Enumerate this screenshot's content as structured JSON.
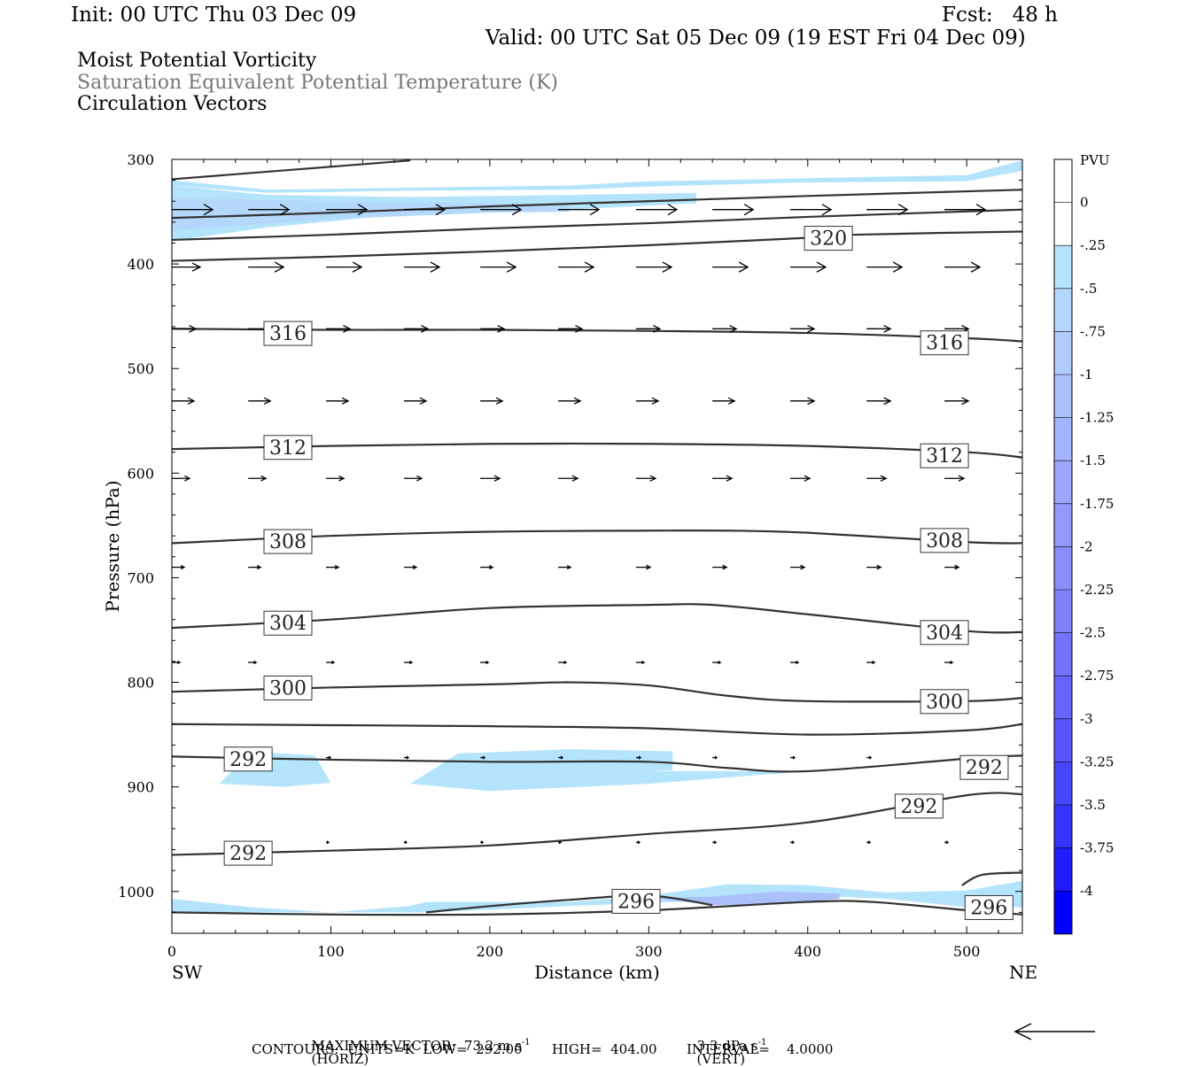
{
  "header": {
    "init": "Init: 00 UTC Thu 03 Dec 09",
    "fcst": "Fcst:   48 h",
    "valid": "Valid: 00 UTC Sat 05 Dec 09 (19 EST Fri 04 Dec 09)"
  },
  "fields": [
    "Moist Potential Vorticity",
    "Saturation Equivalent Potential Temperature (K)",
    "Circulation Vectors"
  ],
  "footer": {
    "max_vector": "MAXIMUM VECTOR:  73.2 m s",
    "max_vector_unit_tail": "(HORIZ)",
    "vert": "3.3 dPa s",
    "vert_tail": "(VERT)",
    "exp": "-1",
    "contours": "CONTOURS:  UNITS=K  LOW=  292.00       HIGH=  404.00       INTERVAL=    4.0000"
  },
  "colors": {
    "pv_shade_light": "#b4e4fb",
    "contour": "#333333"
  },
  "chart_data": {
    "type": "cross-section",
    "xlabel": "Distance (km)",
    "ylabel": "Pressure (hPa)",
    "xlim": [
      0,
      535
    ],
    "ylim": [
      1040,
      300
    ],
    "x_ticks": [
      0,
      100,
      200,
      300,
      400,
      500
    ],
    "y_ticks": [
      300,
      400,
      500,
      600,
      700,
      800,
      900,
      1000
    ],
    "x_end_labels": {
      "left": "SW",
      "right": "NE"
    },
    "colorbar": {
      "unit": "PVU",
      "levels": [
        "0",
        "-.25",
        "-.5",
        "-.75",
        "-1",
        "-1.25",
        "-1.5",
        "-1.75",
        "-2",
        "-2.25",
        "-2.5",
        "-2.75",
        "-3",
        "-3.25",
        "-3.5",
        "-3.75",
        "-4"
      ],
      "colors": [
        "#ffffff",
        "#ffffff",
        "#b4e4fb",
        "#b4d8fb",
        "#b0ccfb",
        "#a9c0fb",
        "#a2b4fb",
        "#9ba7fb",
        "#939afb",
        "#8b8dfb",
        "#8080fb",
        "#7373fb",
        "#6565fb",
        "#5656fb",
        "#4646fb",
        "#3434fb",
        "#1e1efb",
        "#0000fb"
      ]
    },
    "contours": [
      {
        "x": [
          0,
          150
        ],
        "p": [
          319,
          301
        ]
      },
      {
        "x": [
          0,
          100,
          200,
          300,
          400,
          535
        ],
        "p": [
          356,
          351,
          345,
          340,
          335,
          329
        ]
      },
      {
        "x": [
          0,
          100,
          200,
          300,
          400,
          535
        ],
        "p": [
          377,
          372,
          366,
          361,
          355,
          348
        ]
      },
      {
        "x": [
          0,
          100,
          200,
          300,
          400,
          430,
          535
        ],
        "p": [
          397,
          393,
          388,
          382,
          375,
          372,
          369
        ]
      },
      {
        "x": [
          0,
          100,
          200,
          300,
          400,
          500,
          535
        ],
        "p": [
          462,
          463,
          463,
          464,
          466,
          471,
          474
        ]
      },
      {
        "x": [
          0,
          100,
          200,
          300,
          400,
          500,
          535
        ],
        "p": [
          577,
          574,
          572,
          572,
          574,
          580,
          585
        ]
      },
      {
        "x": [
          0,
          100,
          200,
          300,
          350,
          400,
          500,
          535
        ],
        "p": [
          667,
          660,
          656,
          655,
          655,
          657,
          666,
          667
        ]
      },
      {
        "x": [
          0,
          100,
          200,
          300,
          340,
          400,
          500,
          535
        ],
        "p": [
          748,
          740,
          729,
          726,
          726,
          735,
          751,
          752
        ]
      },
      {
        "x": [
          0,
          100,
          200,
          250,
          300,
          350,
          400,
          500,
          535
        ],
        "p": [
          809,
          805,
          802,
          800,
          803,
          813,
          818,
          818,
          815
        ]
      },
      {
        "x": [
          0,
          100,
          200,
          300,
          400,
          500,
          535
        ],
        "p": [
          840,
          841,
          842,
          844,
          850,
          846,
          840
        ]
      },
      {
        "x": [
          0,
          100,
          200,
          300,
          350,
          400,
          500,
          535
        ],
        "p": [
          871,
          874,
          876,
          876,
          882,
          885,
          873,
          870
        ]
      },
      {
        "x": [
          0,
          100,
          200,
          300,
          400,
          500,
          535
        ],
        "p": [
          965,
          961,
          956,
          945,
          934,
          908,
          907
        ]
      },
      {
        "x": [
          0,
          100,
          200,
          300,
          400,
          440,
          500,
          535
        ],
        "p": [
          1020,
          1022,
          1022,
          1018,
          1010,
          1010,
          1018,
          1022
        ]
      },
      {
        "x": [
          160,
          200,
          250,
          300,
          340
        ],
        "p": [
          1020,
          1014,
          1008,
          1004,
          1013
        ]
      },
      {
        "x": [
          497,
          510,
          535
        ],
        "p": [
          994,
          984,
          982
        ]
      }
    ],
    "contour_labels": [
      {
        "x": 73,
        "p": 466,
        "text": "316"
      },
      {
        "x": 486,
        "p": 475,
        "text": "316"
      },
      {
        "x": 73,
        "p": 575,
        "text": "312"
      },
      {
        "x": 486,
        "p": 583,
        "text": "312"
      },
      {
        "x": 73,
        "p": 665,
        "text": "308"
      },
      {
        "x": 486,
        "p": 664,
        "text": "308"
      },
      {
        "x": 73,
        "p": 743,
        "text": "304"
      },
      {
        "x": 486,
        "p": 752,
        "text": "304"
      },
      {
        "x": 73,
        "p": 805,
        "text": "300"
      },
      {
        "x": 486,
        "p": 818,
        "text": "300"
      },
      {
        "x": 48,
        "p": 873,
        "text": "292"
      },
      {
        "x": 511,
        "p": 881,
        "text": "292"
      },
      {
        "x": 48,
        "p": 963,
        "text": "292"
      },
      {
        "x": 470,
        "p": 918,
        "text": "292"
      },
      {
        "x": 292,
        "p": 1009,
        "text": "296"
      },
      {
        "x": 514,
        "p": 1015,
        "text": "296"
      },
      {
        "x": 413,
        "p": 375,
        "text": "320"
      }
    ],
    "pv_regions": [
      {
        "level": "-.25",
        "x": [
          0,
          60,
          150,
          250,
          300,
          400,
          500,
          535,
          535,
          500,
          400,
          300,
          250,
          150,
          60,
          0
        ],
        "p": [
          325,
          332,
          330,
          329,
          326,
          322,
          321,
          311,
          301,
          315,
          318,
          321,
          325,
          327,
          329,
          320
        ],
        "note": "upper band part A"
      },
      {
        "level": "-.25",
        "x": [
          0,
          60,
          150,
          250,
          330,
          330,
          250,
          150,
          60,
          0
        ],
        "p": [
          378,
          365,
          352,
          348,
          342,
          332,
          334,
          336,
          334,
          325
        ]
      },
      {
        "level": "-.5",
        "x": [
          0,
          100,
          200,
          250,
          250,
          200,
          100,
          0
        ],
        "p": [
          368,
          357,
          351,
          350,
          342,
          342,
          340,
          337
        ]
      },
      {
        "level": "-.25",
        "x": [
          30,
          70,
          100,
          90,
          50,
          30
        ],
        "p": [
          897,
          900,
          896,
          870,
          866,
          897
        ]
      },
      {
        "level": "-.25",
        "x": [
          150,
          200,
          300,
          400,
          300,
          315,
          315,
          250,
          200,
          180,
          150
        ],
        "p": [
          897,
          904,
          897,
          885,
          885,
          884,
          866,
          864,
          867,
          868,
          897
        ]
      },
      {
        "level": "-.25",
        "x": [
          0,
          50,
          100,
          150,
          160,
          250,
          350,
          400,
          450,
          500,
          535,
          535,
          500,
          450,
          400,
          350,
          300,
          250,
          160,
          150,
          100,
          50,
          0
        ],
        "p": [
          1020,
          1020,
          1020,
          1020,
          1020,
          1014,
          1008,
          1004,
          1007,
          1015,
          1015,
          990,
          999,
          1001,
          994,
          993,
          1004,
          1010,
          1010,
          1014,
          1020,
          1015,
          1007
        ]
      },
      {
        "level": "-1",
        "x": [
          300,
          340,
          380,
          420,
          420,
          380,
          340,
          300
        ],
        "p": [
          1006,
          1013,
          1012,
          1007,
          1002,
          1000,
          1005,
          1006
        ]
      }
    ],
    "vectors": [
      {
        "p": 348,
        "x": [
          0,
          48,
          97,
          146,
          194,
          243,
          292,
          340,
          389,
          437,
          486
        ],
        "len": [
          46,
          46,
          46,
          46,
          46,
          46,
          46,
          46,
          46,
          46,
          46
        ]
      },
      {
        "p": 403,
        "x": [
          0,
          48,
          97,
          146,
          194,
          243,
          292,
          340,
          389,
          437,
          486
        ],
        "len": [
          32,
          40,
          40,
          40,
          40,
          40,
          40,
          40,
          40,
          40,
          40
        ]
      },
      {
        "p": 462,
        "x": [
          0,
          48,
          97,
          146,
          194,
          243,
          292,
          340,
          389,
          437,
          486
        ],
        "len": [
          27,
          27,
          27,
          27,
          27,
          27,
          27,
          27,
          27,
          27,
          27
        ]
      },
      {
        "p": 531,
        "x": [
          0,
          48,
          97,
          146,
          194,
          243,
          292,
          340,
          389,
          437,
          486
        ],
        "len": [
          25,
          25,
          25,
          25,
          25,
          25,
          25,
          25,
          27,
          27,
          27
        ]
      },
      {
        "p": 605,
        "x": [
          0,
          48,
          97,
          146,
          194,
          243,
          292,
          340,
          389,
          437,
          486
        ],
        "len": [
          20,
          20,
          20,
          20,
          22,
          22,
          22,
          22,
          22,
          22,
          22
        ]
      },
      {
        "p": 690,
        "x": [
          0,
          48,
          97,
          146,
          194,
          243,
          292,
          340,
          389,
          437,
          486
        ],
        "len": [
          14,
          14,
          14,
          14,
          14,
          14,
          16,
          16,
          16,
          16,
          16
        ]
      },
      {
        "p": 781,
        "x": [
          0,
          48,
          97,
          146,
          194,
          243,
          292,
          340,
          389,
          437,
          486
        ],
        "len": [
          9,
          9,
          9,
          9,
          9,
          9,
          9,
          9,
          9,
          9,
          9
        ]
      },
      {
        "p": 872,
        "x": [
          97,
          146,
          194,
          243,
          292,
          340,
          389,
          437
        ],
        "len": [
          5,
          5,
          5,
          5,
          5,
          5,
          5,
          5
        ]
      },
      {
        "p": 953,
        "x": [
          97,
          146,
          194,
          243,
          292,
          340,
          389,
          437,
          486
        ],
        "len": [
          3,
          3,
          3,
          3,
          4,
          4,
          4,
          4,
          4
        ]
      }
    ]
  }
}
